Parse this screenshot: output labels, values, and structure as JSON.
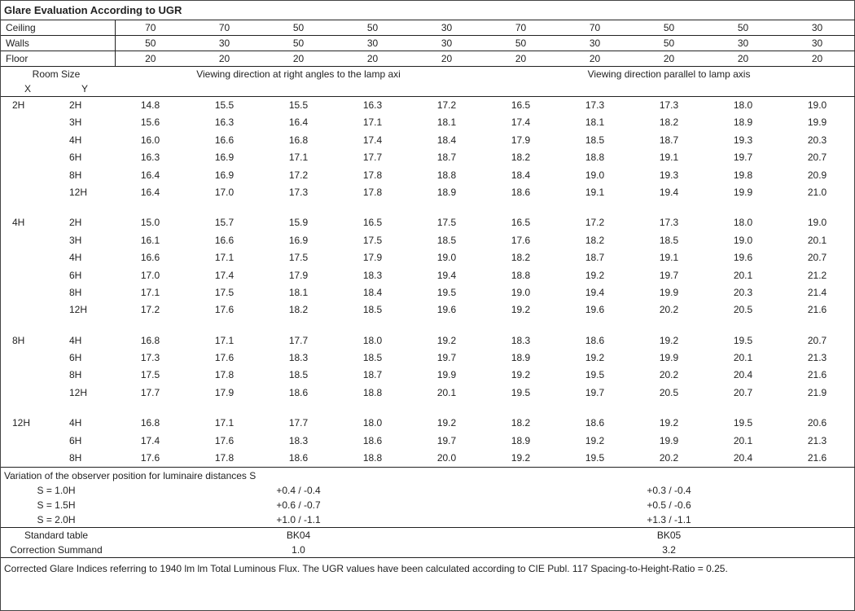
{
  "title": "Glare Evaluation According to UGR",
  "headers": {
    "ceiling_label": "Ceiling",
    "walls_label": "Walls",
    "floor_label": "Floor",
    "ceiling": [
      70,
      70,
      50,
      50,
      30,
      70,
      70,
      50,
      50,
      30
    ],
    "walls": [
      50,
      30,
      50,
      30,
      30,
      50,
      30,
      50,
      30,
      30
    ],
    "floor": [
      20,
      20,
      20,
      20,
      20,
      20,
      20,
      20,
      20,
      20
    ]
  },
  "room_size_label": "Room Size",
  "room_x": "X",
  "room_y": "Y",
  "dir_left": "Viewing direction at right angles to the lamp axi",
  "dir_right": "Viewing direction parallel to lamp axis",
  "groups": [
    {
      "x": "2H",
      "rows": [
        {
          "y": "2H",
          "v": [
            14.8,
            15.5,
            15.5,
            16.3,
            17.2,
            16.5,
            17.3,
            17.3,
            18.0,
            19.0
          ]
        },
        {
          "y": "3H",
          "v": [
            15.6,
            16.3,
            16.4,
            17.1,
            18.1,
            17.4,
            18.1,
            18.2,
            18.9,
            19.9
          ]
        },
        {
          "y": "4H",
          "v": [
            16.0,
            16.6,
            16.8,
            17.4,
            18.4,
            17.9,
            18.5,
            18.7,
            19.3,
            20.3
          ]
        },
        {
          "y": "6H",
          "v": [
            16.3,
            16.9,
            17.1,
            17.7,
            18.7,
            18.2,
            18.8,
            19.1,
            19.7,
            20.7
          ]
        },
        {
          "y": "8H",
          "v": [
            16.4,
            16.9,
            17.2,
            17.8,
            18.8,
            18.4,
            19.0,
            19.3,
            19.8,
            20.9
          ]
        },
        {
          "y": "12H",
          "v": [
            16.4,
            17.0,
            17.3,
            17.8,
            18.9,
            18.6,
            19.1,
            19.4,
            19.9,
            21.0
          ]
        }
      ]
    },
    {
      "x": "4H",
      "rows": [
        {
          "y": "2H",
          "v": [
            15.0,
            15.7,
            15.9,
            16.5,
            17.5,
            16.5,
            17.2,
            17.3,
            18.0,
            19.0
          ]
        },
        {
          "y": "3H",
          "v": [
            16.1,
            16.6,
            16.9,
            17.5,
            18.5,
            17.6,
            18.2,
            18.5,
            19.0,
            20.1
          ]
        },
        {
          "y": "4H",
          "v": [
            16.6,
            17.1,
            17.5,
            17.9,
            19.0,
            18.2,
            18.7,
            19.1,
            19.6,
            20.7
          ]
        },
        {
          "y": "6H",
          "v": [
            17.0,
            17.4,
            17.9,
            18.3,
            19.4,
            18.8,
            19.2,
            19.7,
            20.1,
            21.2
          ]
        },
        {
          "y": "8H",
          "v": [
            17.1,
            17.5,
            18.1,
            18.4,
            19.5,
            19.0,
            19.4,
            19.9,
            20.3,
            21.4
          ]
        },
        {
          "y": "12H",
          "v": [
            17.2,
            17.6,
            18.2,
            18.5,
            19.6,
            19.2,
            19.6,
            20.2,
            20.5,
            21.6
          ]
        }
      ]
    },
    {
      "x": "8H",
      "rows": [
        {
          "y": "4H",
          "v": [
            16.8,
            17.1,
            17.7,
            18.0,
            19.2,
            18.3,
            18.6,
            19.2,
            19.5,
            20.7
          ]
        },
        {
          "y": "6H",
          "v": [
            17.3,
            17.6,
            18.3,
            18.5,
            19.7,
            18.9,
            19.2,
            19.9,
            20.1,
            21.3
          ]
        },
        {
          "y": "8H",
          "v": [
            17.5,
            17.8,
            18.5,
            18.7,
            19.9,
            19.2,
            19.5,
            20.2,
            20.4,
            21.6
          ]
        },
        {
          "y": "12H",
          "v": [
            17.7,
            17.9,
            18.6,
            18.8,
            20.1,
            19.5,
            19.7,
            20.5,
            20.7,
            21.9
          ]
        }
      ]
    },
    {
      "x": "12H",
      "rows": [
        {
          "y": "4H",
          "v": [
            16.8,
            17.1,
            17.7,
            18.0,
            19.2,
            18.2,
            18.6,
            19.2,
            19.5,
            20.6
          ]
        },
        {
          "y": "6H",
          "v": [
            17.4,
            17.6,
            18.3,
            18.6,
            19.7,
            18.9,
            19.2,
            19.9,
            20.1,
            21.3
          ]
        },
        {
          "y": "8H",
          "v": [
            17.6,
            17.8,
            18.6,
            18.8,
            20.0,
            19.2,
            19.5,
            20.2,
            20.4,
            21.6
          ]
        }
      ]
    }
  ],
  "variation_head": "Variation of the observer position for luminaire distances S",
  "variation": [
    {
      "s": "S = 1.0H",
      "left": "+0.4 / -0.4",
      "right": "+0.3 / -0.4"
    },
    {
      "s": "S = 1.5H",
      "left": "+0.6 / -0.7",
      "right": "+0.5 / -0.6"
    },
    {
      "s": "S = 2.0H",
      "left": "+1.0 / -1.1",
      "right": "+1.3 / -1.1"
    }
  ],
  "std_table_label": "Standard table",
  "std_table_left": "BK04",
  "std_table_right": "BK05",
  "correction_label": "Correction Summand",
  "correction_left": "1.0",
  "correction_right": "3.2",
  "footnote": "Corrected Glare Indices referring to 1940 lm lm Total Luminous Flux. The UGR values have been calculated according to CIE Publ. 117    Spacing-to-Height-Ratio = 0.25."
}
